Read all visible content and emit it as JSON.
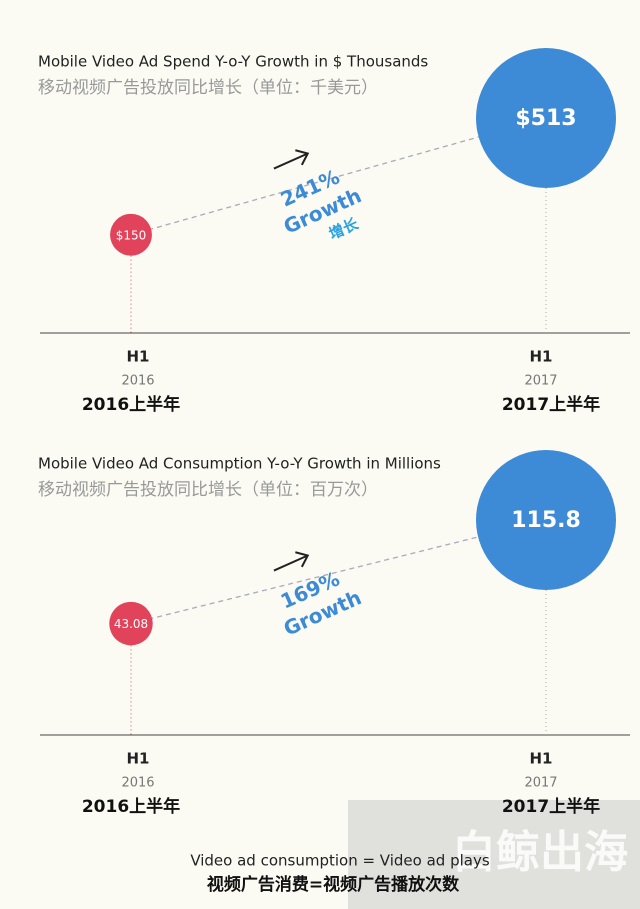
{
  "chart_data": [
    {
      "type": "bubble",
      "title": "Mobile Video Ad Spend Y-o-Y Growth in $ Thousands",
      "subtitle": "移动视频广告投放同比增长（单位：千美元）",
      "categories": [
        "H1",
        "H1"
      ],
      "category_years": [
        "2016",
        "2017"
      ],
      "category_names": [
        "2016上半年",
        "2017上半年"
      ],
      "values": [
        150,
        513
      ],
      "value_labels": [
        "$150",
        "$513"
      ],
      "colors": [
        "#e0435a",
        "#3d8ad6"
      ],
      "growth": "241%",
      "growth_text": [
        "Growth",
        "增长"
      ]
    },
    {
      "type": "bubble",
      "title": "Mobile Video Ad Consumption Y-o-Y Growth in Millions",
      "subtitle": "移动视频广告投放同比增长（单位：百万次）",
      "categories": [
        "H1",
        "H1"
      ],
      "category_years": [
        "2016",
        "2017"
      ],
      "category_names": [
        "2016上半年",
        "2017上半年"
      ],
      "values": [
        43.08,
        115.8
      ],
      "colors": [
        "#e0435a",
        "#3d8ad6"
      ],
      "growth": "169%",
      "growth_text": [
        "Growth"
      ]
    }
  ],
  "footer": [
    "Video ad consumption = Video ad plays",
    "视频广告消费=视频广告播放次数"
  ],
  "watermark": "白鲸出海"
}
